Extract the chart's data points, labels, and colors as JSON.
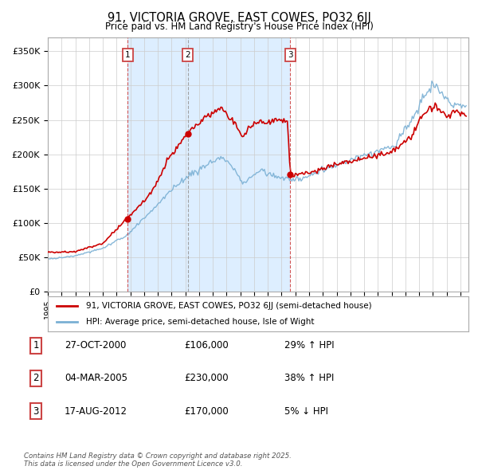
{
  "title": "91, VICTORIA GROVE, EAST COWES, PO32 6JJ",
  "subtitle": "Price paid vs. HM Land Registry's House Price Index (HPI)",
  "ylim": [
    0,
    370000
  ],
  "yticks": [
    0,
    50000,
    100000,
    150000,
    200000,
    250000,
    300000,
    350000
  ],
  "ytick_labels": [
    "£0",
    "£50K",
    "£100K",
    "£150K",
    "£200K",
    "£250K",
    "£300K",
    "£350K"
  ],
  "sale_info": [
    {
      "label": "1",
      "date": "27-OCT-2000",
      "price": "£106,000",
      "hpi": "29% ↑ HPI"
    },
    {
      "label": "2",
      "date": "04-MAR-2005",
      "price": "£230,000",
      "hpi": "38% ↑ HPI"
    },
    {
      "label": "3",
      "date": "17-AUG-2012",
      "price": "£170,000",
      "hpi": "5% ↓ HPI"
    }
  ],
  "legend_line1": "91, VICTORIA GROVE, EAST COWES, PO32 6JJ (semi-detached house)",
  "legend_line2": "HPI: Average price, semi-detached house, Isle of Wight",
  "footer": "Contains HM Land Registry data © Crown copyright and database right 2025.\nThis data is licensed under the Open Government Licence v3.0.",
  "red_color": "#cc0000",
  "blue_color": "#7ab0d4",
  "shade_color": "#ddeeff",
  "vline_color_red": "#cc4444",
  "vline_color_gray": "#999999",
  "grid_color": "#cccccc"
}
